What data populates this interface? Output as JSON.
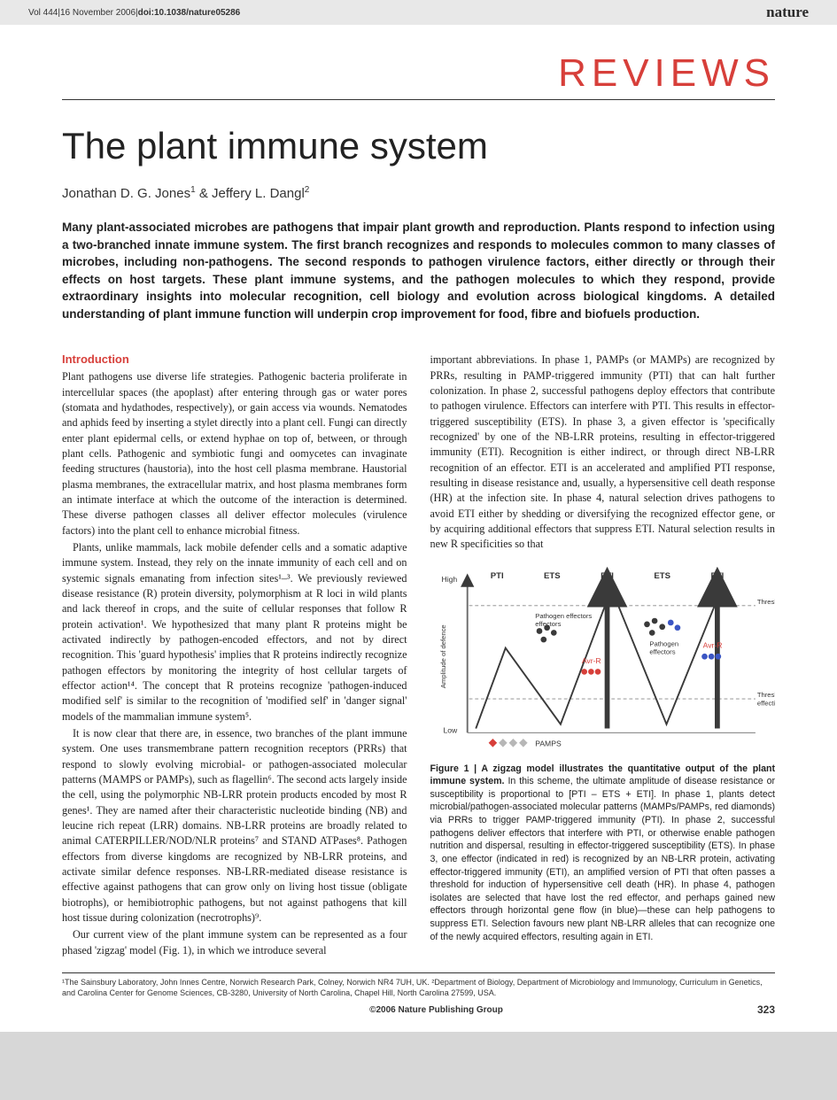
{
  "topbar": {
    "vol": "Vol 444|16 November 2006|",
    "doi_label": "doi:10.1038/nature05286",
    "journal": "nature"
  },
  "heading": {
    "reviews": "REVIEWS",
    "title": "The plant immune system",
    "authors_html": "Jonathan D. G. Jones<sup>1</sup> & Jeffery L. Dangl<sup>2</sup>"
  },
  "abstract": "Many plant-associated microbes are pathogens that impair plant growth and reproduction. Plants respond to infection using a two-branched innate immune system. The first branch recognizes and responds to molecules common to many classes of microbes, including non-pathogens. The second responds to pathogen virulence factors, either directly or through their effects on host targets. These plant immune systems, and the pathogen molecules to which they respond, provide extraordinary insights into molecular recognition, cell biology and evolution across biological kingdoms. A detailed understanding of plant immune function will underpin crop improvement for food, fibre and biofuels production.",
  "intro_heading": "Introduction",
  "col1": {
    "p1": "Plant pathogens use diverse life strategies. Pathogenic bacteria proliferate in intercellular spaces (the apoplast) after entering through gas or water pores (stomata and hydathodes, respectively), or gain access via wounds. Nematodes and aphids feed by inserting a stylet directly into a plant cell. Fungi can directly enter plant epidermal cells, or extend hyphae on top of, between, or through plant cells. Pathogenic and symbiotic fungi and oomycetes can invaginate feeding structures (haustoria), into the host cell plasma membrane. Haustorial plasma membranes, the extracellular matrix, and host plasma membranes form an intimate interface at which the outcome of the interaction is determined. These diverse pathogen classes all deliver effector molecules (virulence factors) into the plant cell to enhance microbial fitness.",
    "p2": "Plants, unlike mammals, lack mobile defender cells and a somatic adaptive immune system. Instead, they rely on the innate immunity of each cell and on systemic signals emanating from infection sites¹–³. We previously reviewed disease resistance (R) protein diversity, polymorphism at R loci in wild plants and lack thereof in crops, and the suite of cellular responses that follow R protein activation¹. We hypothesized that many plant R proteins might be activated indirectly by pathogen-encoded effectors, and not by direct recognition. This 'guard hypothesis' implies that R proteins indirectly recognize pathogen effectors by monitoring the integrity of host cellular targets of effector action¹⁴. The concept that R proteins recognize 'pathogen-induced modified self' is similar to the recognition of 'modified self' in 'danger signal' models of the mammalian immune system⁵.",
    "p3": "It is now clear that there are, in essence, two branches of the plant immune system. One uses transmembrane pattern recognition receptors (PRRs) that respond to slowly evolving microbial- or pathogen-associated molecular patterns (MAMPS or PAMPs), such as flagellin⁶. The second acts largely inside the cell, using the polymorphic NB-LRR protein products encoded by most R genes¹. They are named after their characteristic nucleotide binding (NB) and leucine rich repeat (LRR) domains. NB-LRR proteins are broadly related to animal CATERPILLER/NOD/NLR proteins⁷ and STAND ATPases⁸. Pathogen effectors from diverse kingdoms are recognized by NB-LRR proteins, and activate similar defence responses. NB-LRR-mediated disease resistance is effective against pathogens that can grow only on living host tissue (obligate biotrophs), or hemibiotrophic pathogens, but not against pathogens that kill host tissue during colonization (necrotrophs)⁹.",
    "p4": "Our current view of the plant immune system can be represented as a four phased 'zigzag' model (Fig. 1), in which we introduce several"
  },
  "col2": {
    "p1": "important abbreviations. In phase 1, PAMPs (or MAMPs) are recognized by PRRs, resulting in PAMP-triggered immunity (PTI) that can halt further colonization. In phase 2, successful pathogens deploy effectors that contribute to pathogen virulence. Effectors can interfere with PTI. This results in effector-triggered susceptibility (ETS). In phase 3, a given effector is 'specifically recognized' by one of the NB-LRR proteins, resulting in effector-triggered immunity (ETI). Recognition is either indirect, or through direct NB-LRR recognition of an effector. ETI is an accelerated and amplified PTI response, resulting in disease resistance and, usually, a hypersensitive cell death response (HR) at the infection site. In phase 4, natural selection drives pathogens to avoid ETI either by shedding or diversifying the recognized effector gene, or by acquiring additional effectors that suppress ETI. Natural selection results in new R specificities so that"
  },
  "figure": {
    "labels": {
      "high": "High",
      "low": "Low",
      "pti": "PTI",
      "ets": "ETS",
      "eti": "ETI",
      "threshold_hr": "Threshold for HR",
      "threshold_eff": "Threshold for effective resistance",
      "pathogen_effectors": "Pathogen effectors",
      "avr_r": "Avr-R",
      "pamps": "PAMPS",
      "yaxis": "Amplitude of defence"
    },
    "colors": {
      "axis": "#6b6b6b",
      "arrow_fill": "#3a3a3a",
      "dash": "#888888",
      "red": "#d73f3a",
      "blue": "#3b56c4",
      "grey_diamond": "#b7b7b7",
      "red_diamond": "#d73f3a",
      "text": "#333333"
    },
    "caption_title": "Figure 1 | A zigzag model illustrates the quantitative output of the plant immune system.",
    "caption_body": " In this scheme, the ultimate amplitude of disease resistance or susceptibility is proportional to [PTI – ETS + ETI]. In phase 1, plants detect microbial/pathogen-associated molecular patterns (MAMPs/PAMPs, red diamonds) via PRRs to trigger PAMP-triggered immunity (PTI). In phase 2, successful pathogens deliver effectors that interfere with PTI, or otherwise enable pathogen nutrition and dispersal, resulting in effector-triggered susceptibility (ETS). In phase 3, one effector (indicated in red) is recognized by an NB-LRR protein, activating effector-triggered immunity (ETI), an amplified version of PTI that often passes a threshold for induction of hypersensitive cell death (HR). In phase 4, pathogen isolates are selected that have lost the red effector, and perhaps gained new effectors through horizontal gene flow (in blue)—these can help pathogens to suppress ETI. Selection favours new plant NB-LRR alleles that can recognize one of the newly acquired effectors, resulting again in ETI."
  },
  "affiliations": "¹The Sainsbury Laboratory, John Innes Centre, Norwich Research Park, Colney, Norwich NR4 7UH, UK. ²Department of Biology, Department of Microbiology and Immunology, Curriculum in Genetics, and Carolina Center for Genome Sciences, CB-3280, University of North Carolina, Chapel Hill, North Carolina 27599, USA.",
  "footer": {
    "copyright": "©2006 Nature Publishing Group",
    "page": "323"
  }
}
